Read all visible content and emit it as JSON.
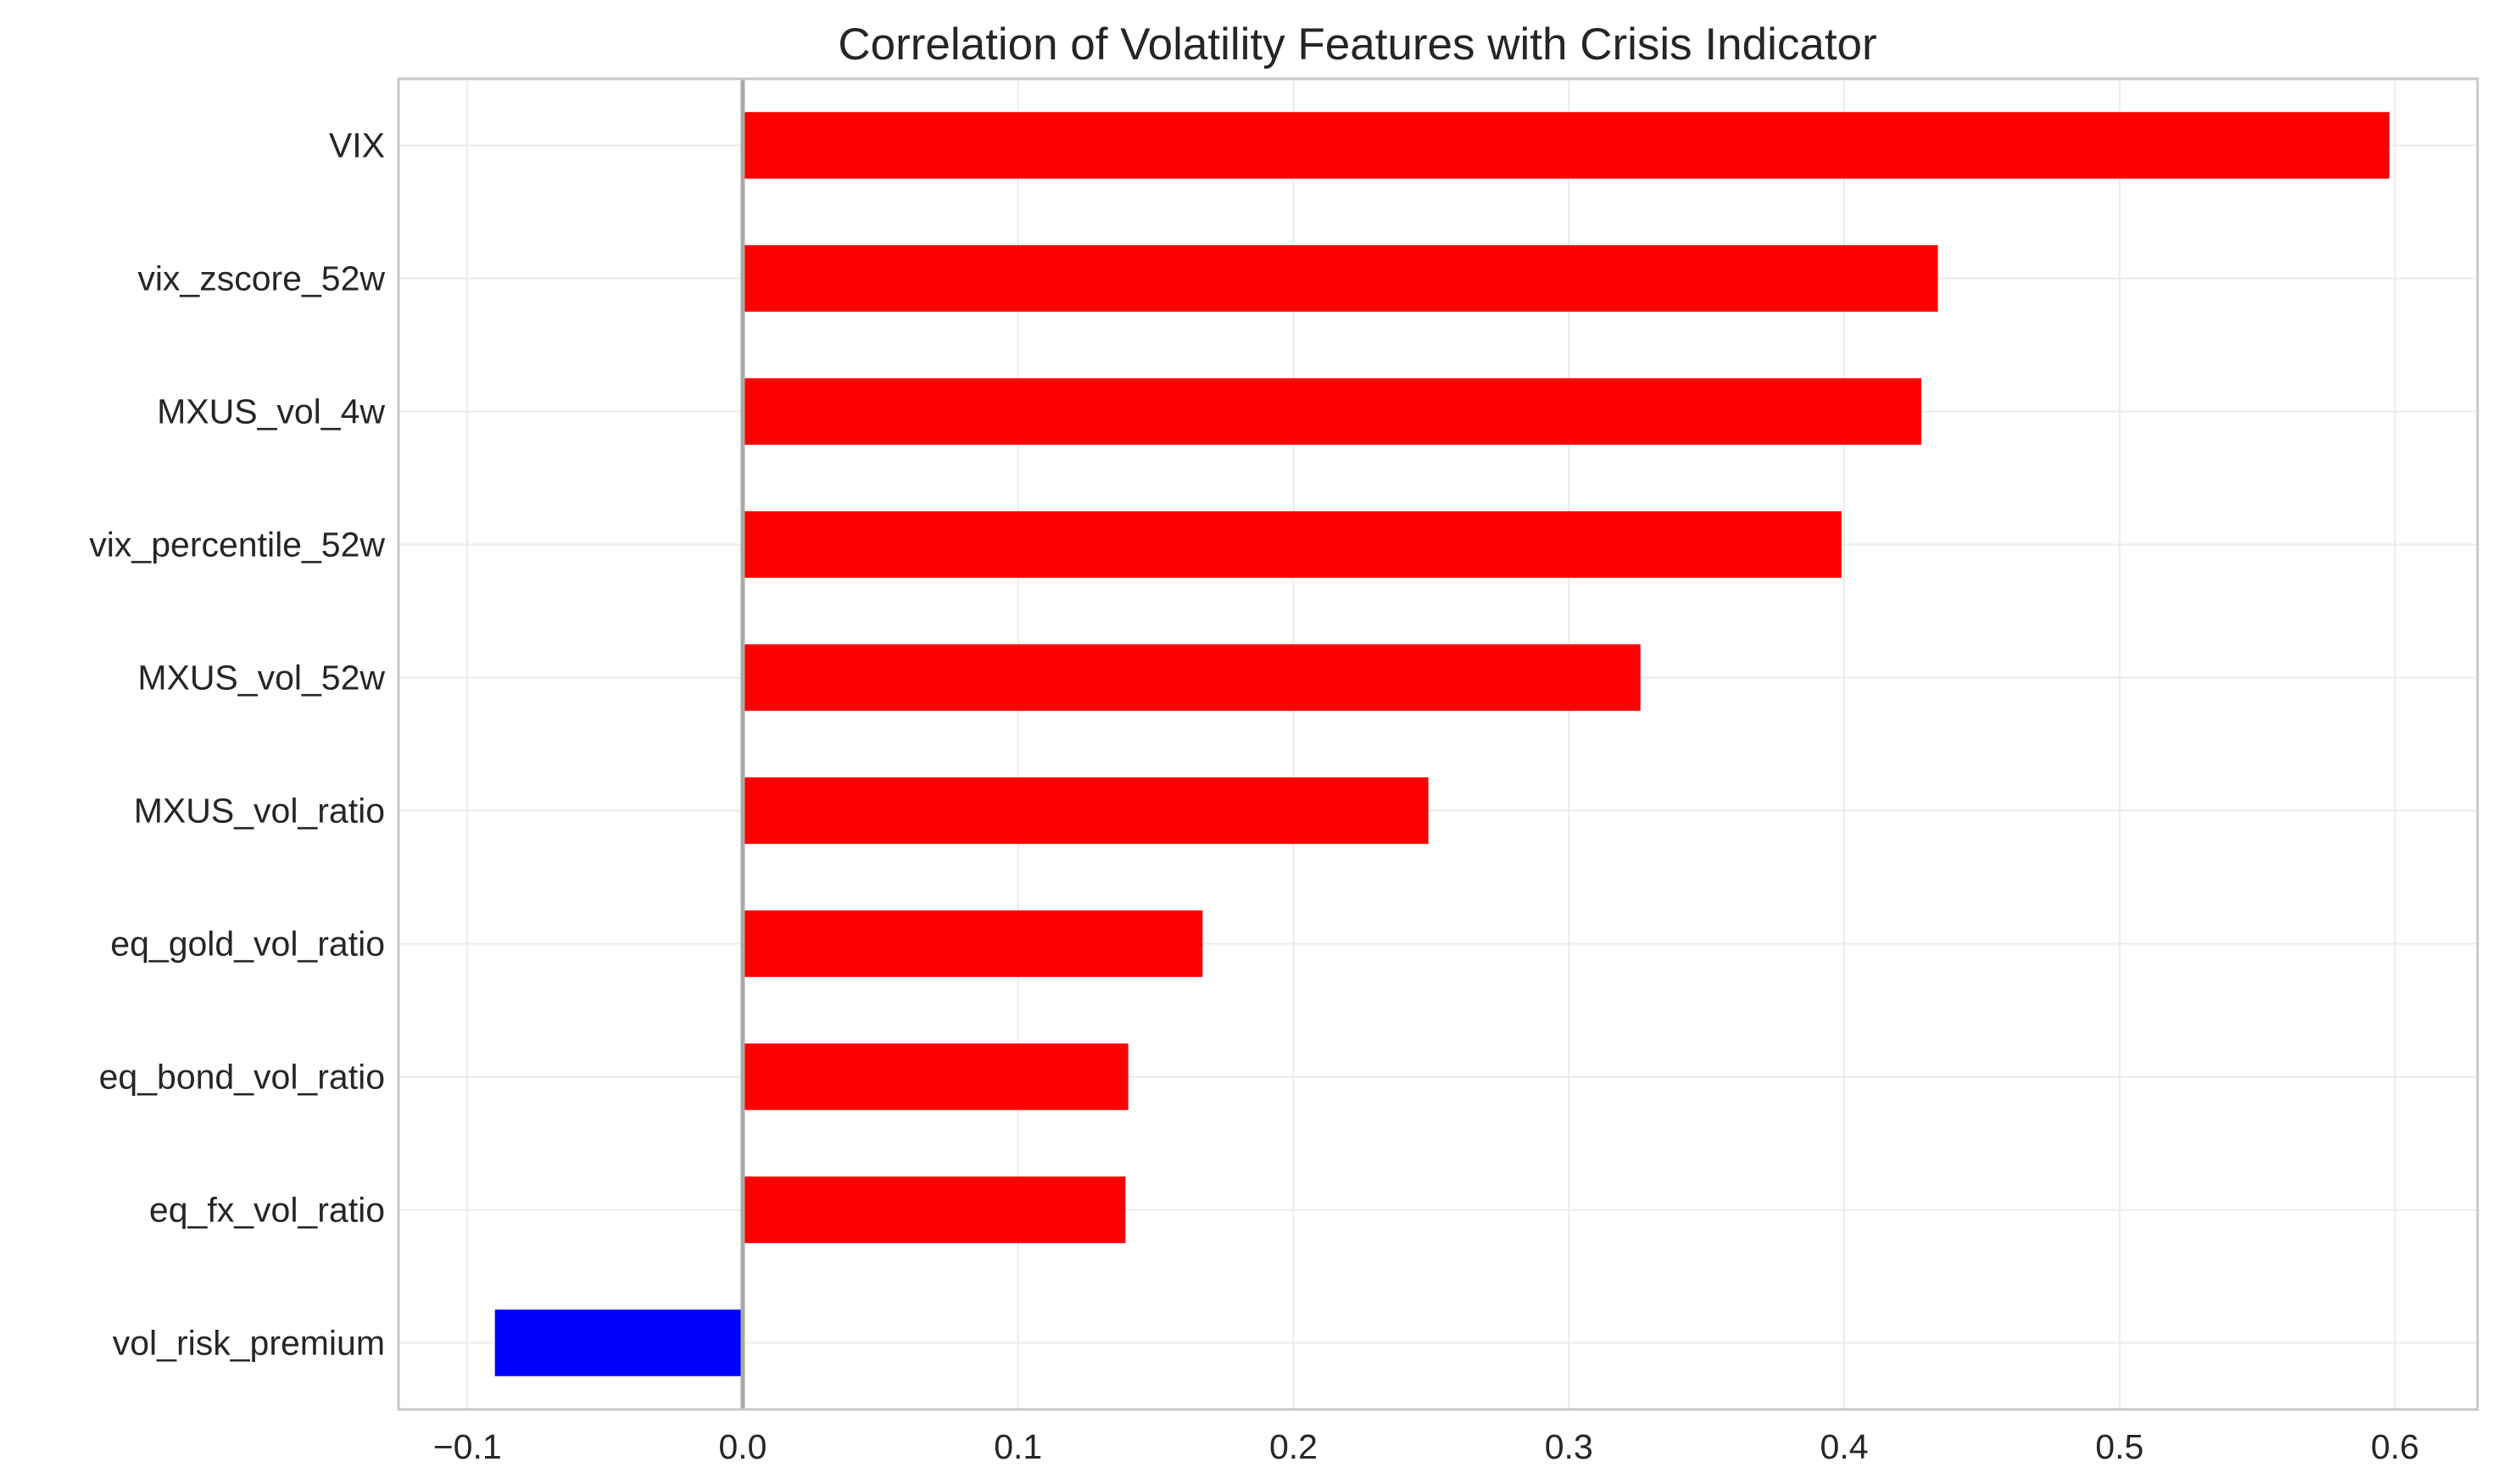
{
  "chart_data": {
    "type": "bar",
    "orientation": "horizontal",
    "title": "Correlation of Volatility Features with Crisis Indicator",
    "xlabel": "",
    "ylabel": "",
    "categories": [
      "VIX",
      "vix_zscore_52w",
      "MXUS_vol_4w",
      "vix_percentile_52w",
      "MXUS_vol_52w",
      "MXUS_vol_ratio",
      "eq_gold_vol_ratio",
      "eq_bond_vol_ratio",
      "eq_fx_vol_ratio",
      "vol_risk_premium"
    ],
    "values": [
      0.598,
      0.434,
      0.428,
      0.399,
      0.326,
      0.249,
      0.167,
      0.14,
      0.139,
      -0.09
    ],
    "xlim": [
      -0.125,
      0.63
    ],
    "xticks": [
      -0.1,
      0.0,
      0.1,
      0.2,
      0.3,
      0.4,
      0.5,
      0.6
    ],
    "xtick_labels": [
      "−0.1",
      "0.0",
      "0.1",
      "0.2",
      "0.3",
      "0.4",
      "0.5",
      "0.6"
    ],
    "grid": true,
    "zero_line": true,
    "colors": {
      "positive": "#ff0000",
      "negative": "#0000ff",
      "grid": "#ebebeb",
      "frame": "#c8c8c8",
      "zero_line": "#a9a9a9",
      "text": "#262626"
    }
  }
}
